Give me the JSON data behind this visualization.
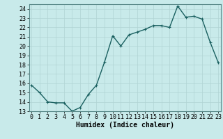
{
  "xlabel": "Humidex (Indice chaleur)",
  "x": [
    0,
    1,
    2,
    3,
    4,
    5,
    6,
    7,
    8,
    9,
    10,
    11,
    12,
    13,
    14,
    15,
    16,
    17,
    18,
    19,
    20,
    21,
    22,
    23
  ],
  "y": [
    15.8,
    15.0,
    14.0,
    13.9,
    13.9,
    13.0,
    13.4,
    14.8,
    15.8,
    18.3,
    21.1,
    20.0,
    21.2,
    21.5,
    21.8,
    22.2,
    22.2,
    22.0,
    24.3,
    23.1,
    23.2,
    22.9,
    20.4,
    18.2
  ],
  "line_color": "#1a6060",
  "marker_color": "#1a6060",
  "bg_color": "#c8eaea",
  "grid_color": "#b0d4d4",
  "ylim": [
    13,
    24.5
  ],
  "xlim": [
    -0.3,
    23.3
  ],
  "yticks": [
    13,
    14,
    15,
    16,
    17,
    18,
    19,
    20,
    21,
    22,
    23,
    24
  ],
  "xticks": [
    0,
    1,
    2,
    3,
    4,
    5,
    6,
    7,
    8,
    9,
    10,
    11,
    12,
    13,
    14,
    15,
    16,
    17,
    18,
    19,
    20,
    21,
    22,
    23
  ],
  "xlabel_fontsize": 7,
  "tick_fontsize": 6,
  "linewidth": 1.0,
  "markersize": 2.5
}
